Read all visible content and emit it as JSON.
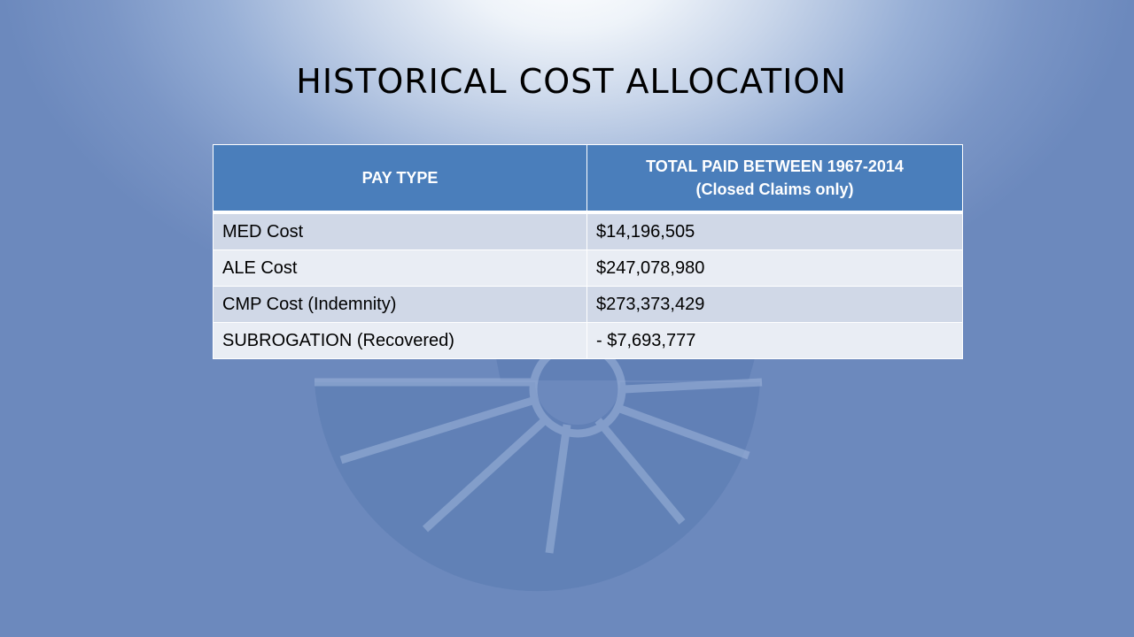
{
  "title": "HISTORICAL COST ALLOCATION",
  "table": {
    "headers": {
      "pay_type": "PAY TYPE",
      "total_line1": "TOTAL PAID BETWEEN 1967-2014",
      "total_line2": "(Closed Claims only)"
    },
    "rows": [
      {
        "pay_type": "MED Cost",
        "amount": "$14,196,505"
      },
      {
        "pay_type": "ALE Cost",
        "amount": "$247,078,980"
      },
      {
        "pay_type": "CMP Cost (Indemnity)",
        "amount": "$273,373,429"
      },
      {
        "pay_type": "SUBROGATION (Recovered)",
        "amount": "- $7,693,777"
      }
    ]
  },
  "colors": {
    "header_bg": "#4a7ebb",
    "row_odd": "#d0d8e7",
    "row_even": "#e9edf4"
  }
}
